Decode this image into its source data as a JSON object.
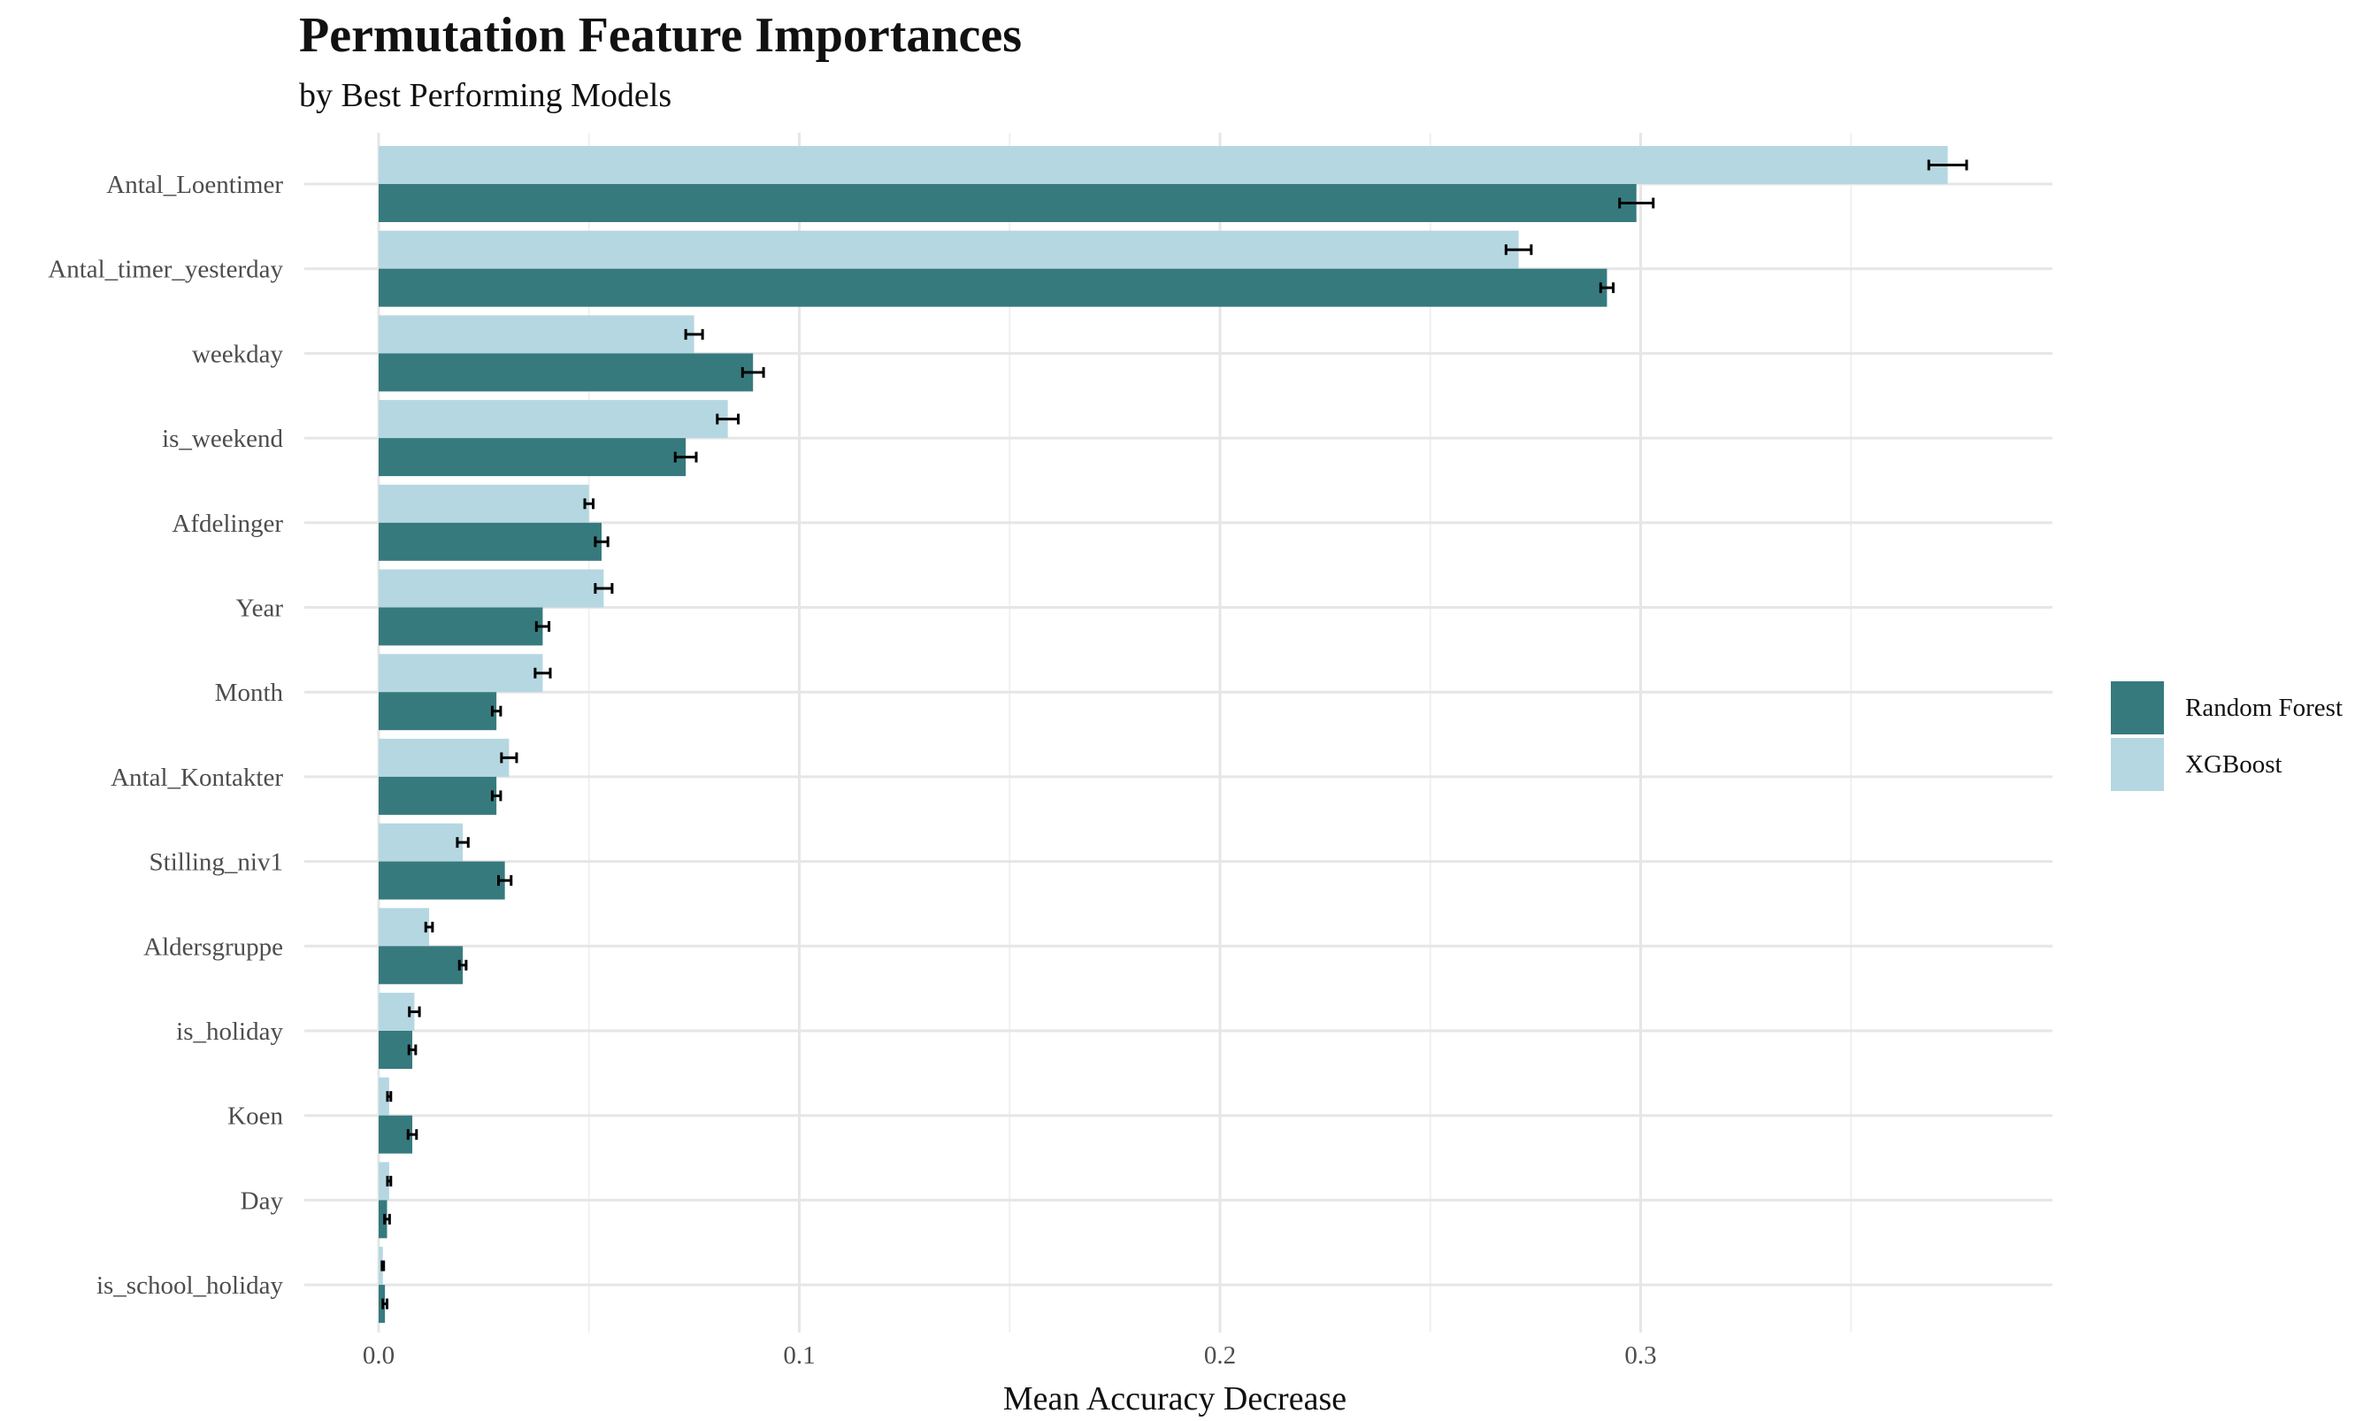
{
  "chart_data": {
    "type": "bar",
    "orientation": "horizontal",
    "title": "Permutation Feature Importances",
    "subtitle": "by Best Performing Models",
    "xlabel": "Mean Accuracy Decrease",
    "ylabel": "",
    "xlim": [
      -0.012,
      0.3975
    ],
    "xticks": [
      0.0,
      0.1,
      0.2,
      0.3
    ],
    "xtick_labels": [
      "0.0",
      "0.1",
      "0.2",
      "0.3"
    ],
    "grid": true,
    "legend_position": "right",
    "categories": [
      "Antal_Loentimer",
      "Antal_timer_yesterday",
      "weekday",
      "is_weekend",
      "Afdelinger",
      "Year",
      "Month",
      "Antal_Kontakter",
      "Stilling_niv1",
      "Aldersgruppe",
      "is_holiday",
      "Koen",
      "Day",
      "is_school_holiday"
    ],
    "series": [
      {
        "name": "Random Forest",
        "color": "#367a7e",
        "values": [
          0.299,
          0.292,
          0.089,
          0.073,
          0.053,
          0.039,
          0.028,
          0.028,
          0.03,
          0.02,
          0.008,
          0.008,
          0.002,
          0.0015
        ],
        "errors": [
          0.004,
          0.0015,
          0.0025,
          0.0025,
          0.0015,
          0.0015,
          0.001,
          0.001,
          0.0015,
          0.0008,
          0.0008,
          0.001,
          0.0006,
          0.0005
        ]
      },
      {
        "name": "XGBoost",
        "color": "#b5d7e1",
        "values": [
          0.373,
          0.271,
          0.075,
          0.083,
          0.05,
          0.0535,
          0.039,
          0.031,
          0.02,
          0.012,
          0.0085,
          0.0025,
          0.0025,
          0.001
        ],
        "errors": [
          0.0045,
          0.003,
          0.002,
          0.0025,
          0.001,
          0.002,
          0.0018,
          0.0018,
          0.0013,
          0.0008,
          0.0012,
          0.0004,
          0.0004,
          0.0002
        ]
      }
    ]
  }
}
